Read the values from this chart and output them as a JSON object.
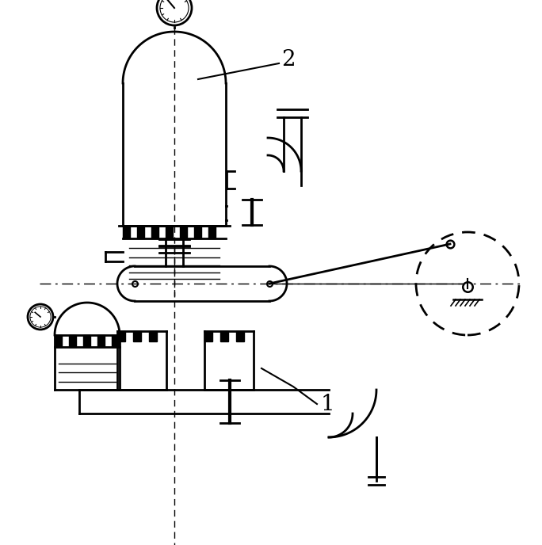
{
  "bg_color": "#ffffff",
  "line_color": "#000000",
  "fig_width": 6.84,
  "fig_height": 6.88
}
